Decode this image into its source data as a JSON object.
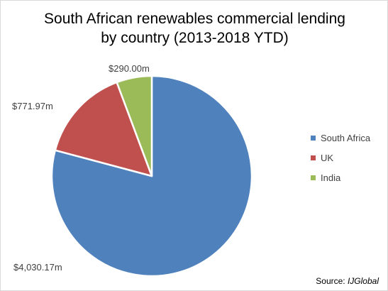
{
  "chart_data": {
    "type": "pie",
    "title_line1": "South African renewables commercial lending",
    "title_line2": "by country (2013-2018 YTD)",
    "slices": [
      {
        "name": "South Africa",
        "value": 4030.17,
        "label": "$4,030.17m",
        "color": "#4f81bd"
      },
      {
        "name": "UK",
        "value": 771.97,
        "label": "$771.97m",
        "color": "#c0504d"
      },
      {
        "name": "India",
        "value": 290.0,
        "label": "$290.00m",
        "color": "#9bbb59"
      }
    ],
    "legend_position": "right",
    "source_prefix": "Source:",
    "source_name": "IJGlobal"
  }
}
